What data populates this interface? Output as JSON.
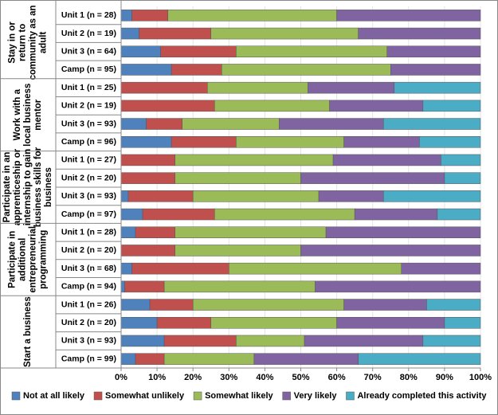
{
  "chart_data": {
    "type": "stacked-bar-horizontal",
    "groups": [
      {
        "label_lines": [
          "Stay in or",
          "return to",
          "community as an",
          "adult"
        ],
        "categories": [
          "Unit 1 (n = 28)",
          "Unit 2 (n = 19)",
          "Unit 3 (n = 64)",
          "Camp (n = 95)"
        ]
      },
      {
        "label_lines": [
          "Work with a",
          "local business",
          "mentor"
        ],
        "categories": [
          "Unit 1 (n = 25)",
          "Unit 2 (n = 19)",
          "Unit 3 (n = 93)",
          "Camp (n = 96)"
        ]
      },
      {
        "label_lines": [
          "Participate in an",
          "apprenticeship or",
          "internship to gain",
          "business skills for",
          "business"
        ],
        "categories": [
          "Unit 1 (n = 27)",
          "Unit 2 (n = 20)",
          "Unit 3 (n = 93)",
          "Camp (n = 97)"
        ]
      },
      {
        "label_lines": [
          "Participate in",
          "additional",
          "entrepreneurial",
          "programming"
        ],
        "categories": [
          "Unit 1 (n = 28)",
          "Unit 2 (n = 20)",
          "Unit 3 (n = 68)",
          "Camp (n = 94)"
        ]
      },
      {
        "label_lines": [
          "Start a business"
        ],
        "categories": [
          "Unit 1 (n = 26)",
          "Unit 2 (n = 20)",
          "Unit 3 (n = 93)",
          "Camp (n = 99)"
        ]
      }
    ],
    "series": [
      {
        "name": "Not at all likely",
        "color": "#4f81bd",
        "values": [
          3,
          5,
          11,
          14,
          0,
          0,
          7,
          14,
          0,
          0,
          2,
          6,
          4,
          0,
          3,
          1,
          8,
          10,
          12,
          4
        ]
      },
      {
        "name": "Somewhat unlikely",
        "color": "#c0504d",
        "values": [
          10,
          20,
          21,
          14,
          24,
          26,
          10,
          18,
          15,
          15,
          18,
          20,
          11,
          15,
          27,
          11,
          12,
          15,
          20,
          8
        ]
      },
      {
        "name": "Somewhat likely",
        "color": "#9bbb59",
        "values": [
          47,
          41,
          42,
          47,
          28,
          32,
          27,
          30,
          44,
          35,
          35,
          39,
          42,
          35,
          48,
          42,
          42,
          35,
          19,
          25
        ]
      },
      {
        "name": "Very likely",
        "color": "#8064a2",
        "values": [
          40,
          34,
          26,
          25,
          24,
          26,
          29,
          21,
          30,
          40,
          18,
          23,
          43,
          50,
          22,
          46,
          23,
          30,
          33,
          29
        ]
      },
      {
        "name": "Already completed this activity",
        "color": "#4bacc6",
        "values": [
          0,
          0,
          0,
          0,
          24,
          16,
          27,
          17,
          11,
          10,
          27,
          12,
          0,
          0,
          0,
          0,
          15,
          10,
          16,
          34
        ]
      }
    ],
    "xlim": [
      0,
      100
    ],
    "xticks": [
      {
        "value": 0,
        "label": "0%"
      },
      {
        "value": 10,
        "label": "10%"
      },
      {
        "value": 20,
        "label": "20%"
      },
      {
        "value": 30,
        "label": "30%"
      },
      {
        "value": 40,
        "label": "40%"
      },
      {
        "value": 50,
        "label": "50%"
      },
      {
        "value": 60,
        "label": "60%"
      },
      {
        "value": 70,
        "label": "70%"
      },
      {
        "value": 80,
        "label": "80%"
      },
      {
        "value": 90,
        "label": "90%"
      },
      {
        "value": 100,
        "label": "100%"
      }
    ],
    "grid": true,
    "legend": "bottom"
  }
}
